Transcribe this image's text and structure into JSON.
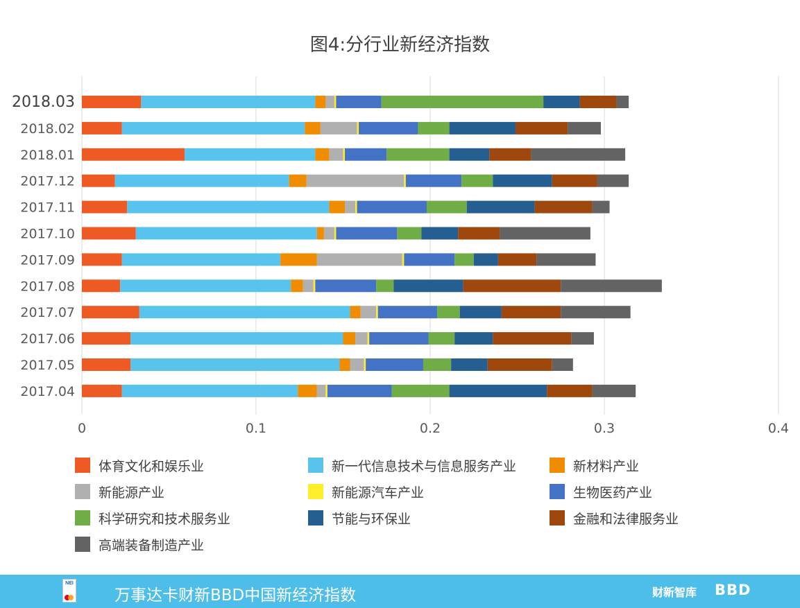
{
  "chart_data": {
    "type": "bar",
    "orientation": "horizontal",
    "stacked": true,
    "title": "图4:分行业新经济指数",
    "categories": [
      "2018.03",
      "2018.02",
      "2018.01",
      "2017.12",
      "2017.11",
      "2017.10",
      "2017.09",
      "2017.08",
      "2017.07",
      "2017.06",
      "2017.05",
      "2017.04"
    ],
    "highlighted_category": "2018.03",
    "xlim": [
      0,
      0.4
    ],
    "xticks": [
      "0",
      "0.1",
      "0.2",
      "0.3",
      "0.4"
    ],
    "grid": true,
    "legend_position": "bottom",
    "series": [
      {
        "name": "体育文化和娱乐业",
        "color": "#ee5a24",
        "values": [
          0.034,
          0.023,
          0.059,
          0.019,
          0.026,
          0.031,
          0.023,
          0.022,
          0.033,
          0.028,
          0.028,
          0.023
        ]
      },
      {
        "name": "新一代信息技术与信息服务产业",
        "color": "#58c4ee",
        "values": [
          0.1,
          0.105,
          0.075,
          0.1,
          0.116,
          0.104,
          0.091,
          0.098,
          0.121,
          0.122,
          0.12,
          0.101
        ]
      },
      {
        "name": "新材料产业",
        "color": "#f08c00",
        "values": [
          0.006,
          0.009,
          0.008,
          0.01,
          0.009,
          0.004,
          0.021,
          0.007,
          0.006,
          0.007,
          0.006,
          0.011
        ]
      },
      {
        "name": "新能源产业",
        "color": "#b0b0b0",
        "values": [
          0.005,
          0.021,
          0.008,
          0.056,
          0.006,
          0.006,
          0.049,
          0.006,
          0.009,
          0.007,
          0.008,
          0.005
        ]
      },
      {
        "name": "新能源汽车产业",
        "color": "#ffed29",
        "values": [
          0.001,
          0.001,
          0.001,
          0.001,
          0.001,
          0.001,
          0.001,
          0.001,
          0.001,
          0.001,
          0.001,
          0.001
        ]
      },
      {
        "name": "生物医药产业",
        "color": "#4472c4",
        "values": [
          0.026,
          0.034,
          0.024,
          0.032,
          0.04,
          0.035,
          0.029,
          0.035,
          0.034,
          0.034,
          0.033,
          0.037
        ]
      },
      {
        "name": "科学研究和技术服务业",
        "color": "#70ad47",
        "values": [
          0.093,
          0.018,
          0.036,
          0.018,
          0.023,
          0.014,
          0.011,
          0.01,
          0.013,
          0.015,
          0.016,
          0.033
        ]
      },
      {
        "name": "节能与环保业",
        "color": "#255e91",
        "values": [
          0.021,
          0.038,
          0.023,
          0.034,
          0.039,
          0.021,
          0.014,
          0.04,
          0.024,
          0.022,
          0.021,
          0.056
        ]
      },
      {
        "name": "金融和法律服务业",
        "color": "#9e480e",
        "values": [
          0.021,
          0.03,
          0.024,
          0.026,
          0.033,
          0.024,
          0.022,
          0.056,
          0.034,
          0.045,
          0.037,
          0.026
        ]
      },
      {
        "name": "高端装备制造产业",
        "color": "#636363",
        "values": [
          0.007,
          0.019,
          0.054,
          0.018,
          0.01,
          0.052,
          0.034,
          0.058,
          0.04,
          0.013,
          0.012,
          0.025
        ]
      }
    ]
  },
  "footer": {
    "logo_text": "NEI",
    "title": "万事达卡财新BBD中国新经济指数",
    "brand_cn": "财新智库",
    "brand_en": "BBD"
  }
}
